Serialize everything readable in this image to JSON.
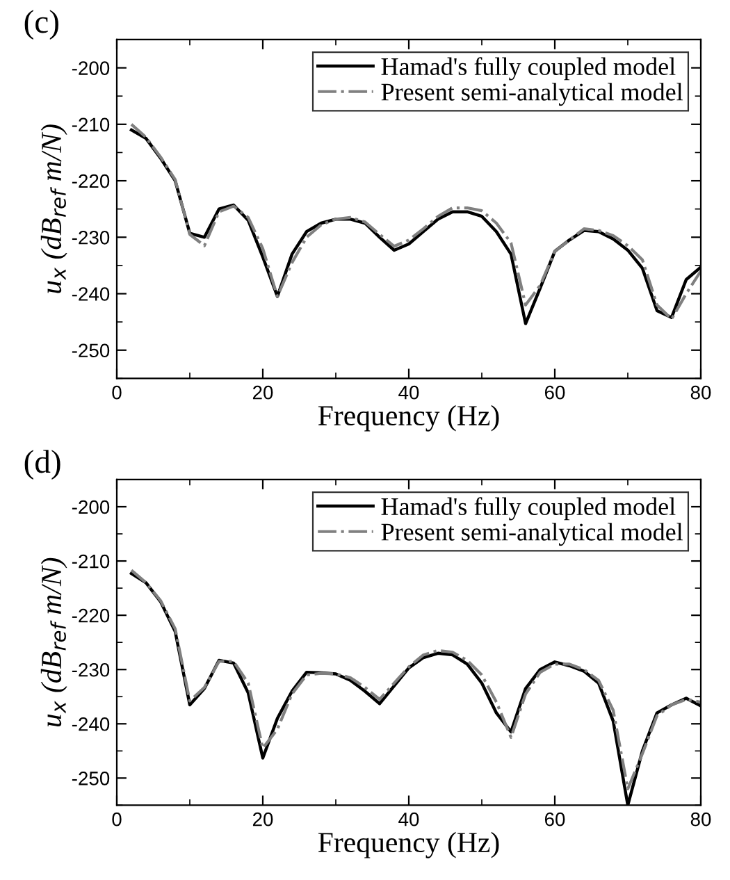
{
  "chart_data": [
    {
      "type": "line",
      "title": "(c)",
      "xlabel": "Frequency (Hz)",
      "ylabel": "u$_{x}$ (dB$_{ref}$ m/N)",
      "x": [
        2,
        4,
        6,
        8,
        10,
        12,
        14,
        16,
        18,
        20,
        22,
        24,
        26,
        28,
        30,
        32,
        34,
        36,
        38,
        40,
        42,
        44,
        46,
        48,
        50,
        52,
        54,
        56,
        58,
        60,
        62,
        64,
        66,
        68,
        70,
        72,
        74,
        76,
        78,
        80
      ],
      "series": [
        {
          "name": "Hamad's fully coupled model",
          "color": "#000000",
          "line_style": "solid",
          "values": [
            -211,
            -212.5,
            -216,
            -220,
            -229.3,
            -230,
            -225,
            -224.3,
            -227,
            -233.5,
            -240.5,
            -233,
            -229,
            -227.5,
            -226.8,
            -226.8,
            -227.5,
            -230,
            -232.3,
            -231.2,
            -229,
            -226.8,
            -225.5,
            -225.5,
            -226.3,
            -229,
            -233,
            -245.3,
            -239,
            -232.5,
            -230.5,
            -228.8,
            -229,
            -230.3,
            -232.3,
            -235.5,
            -243,
            -244.2,
            -237.5,
            -235.3
          ]
        },
        {
          "name": "Present semi-analytical model",
          "color": "#808080",
          "line_style": "dashdot",
          "values": [
            -210,
            -212.3,
            -215.8,
            -219.8,
            -229.5,
            -231.5,
            -225.5,
            -224.5,
            -226.5,
            -232,
            -240.5,
            -234.5,
            -230,
            -227.8,
            -226.8,
            -226.5,
            -227.3,
            -229.5,
            -231.6,
            -230.5,
            -228.5,
            -226.3,
            -224.8,
            -224.8,
            -225.3,
            -227.5,
            -231,
            -242,
            -238.5,
            -232.5,
            -230.5,
            -228.5,
            -228.8,
            -229.7,
            -231.5,
            -234,
            -242,
            -244.5,
            -240,
            -236
          ]
        }
      ],
      "xlim": [
        0,
        80
      ],
      "xticks": [
        0,
        20,
        40,
        60,
        80
      ],
      "ylim": [
        -255,
        -195
      ],
      "yticks": [
        -250,
        -240,
        -230,
        -220,
        -210,
        -200
      ],
      "grid": false,
      "legend": "top right"
    },
    {
      "type": "line",
      "title": "(d)",
      "xlabel": "Frequency (Hz)",
      "ylabel": "u$_{x}$ (dB$_{ref}$ m/N)",
      "x": [
        2,
        4,
        6,
        8,
        10,
        12,
        14,
        16,
        18,
        20,
        22,
        24,
        26,
        28,
        30,
        32,
        34,
        36,
        38,
        40,
        42,
        44,
        46,
        48,
        50,
        52,
        54,
        56,
        58,
        60,
        62,
        64,
        66,
        68,
        70,
        72,
        74,
        76,
        78,
        80
      ],
      "series": [
        {
          "name": "Hamad's fully coupled model",
          "color": "#000000",
          "line_style": "solid",
          "values": [
            -212.3,
            -214,
            -217.5,
            -223,
            -236.5,
            -233.5,
            -228.3,
            -228.8,
            -234.3,
            -246.3,
            -239,
            -234,
            -230.5,
            -230.6,
            -230.8,
            -232,
            -234,
            -236.3,
            -233,
            -229.7,
            -227.8,
            -227,
            -227.3,
            -229,
            -232.5,
            -238,
            -241.5,
            -233.5,
            -230,
            -228.6,
            -229.3,
            -230.3,
            -232.5,
            -239.5,
            -255,
            -245,
            -238,
            -236.5,
            -235.3,
            -236.7
          ]
        },
        {
          "name": "Present semi-analytical model",
          "color": "#808080",
          "line_style": "dashdot",
          "values": [
            -211.7,
            -214,
            -217.3,
            -222.5,
            -235.8,
            -233.3,
            -228.5,
            -228.5,
            -232.5,
            -244.5,
            -241,
            -234.5,
            -231,
            -230.7,
            -230.8,
            -231.5,
            -233.3,
            -235.5,
            -232.5,
            -229.5,
            -227.3,
            -226.5,
            -226.8,
            -228.3,
            -231,
            -236,
            -242.5,
            -234.5,
            -230.5,
            -229,
            -229,
            -230,
            -232,
            -237.5,
            -252,
            -245.5,
            -238.5,
            -236.5,
            -235.5,
            -236
          ]
        }
      ],
      "xlim": [
        0,
        80
      ],
      "xticks": [
        0,
        20,
        40,
        60,
        80
      ],
      "ylim": [
        -255,
        -195
      ],
      "yticks": [
        -250,
        -240,
        -230,
        -220,
        -210,
        -200
      ],
      "grid": false,
      "legend": "top right"
    }
  ]
}
